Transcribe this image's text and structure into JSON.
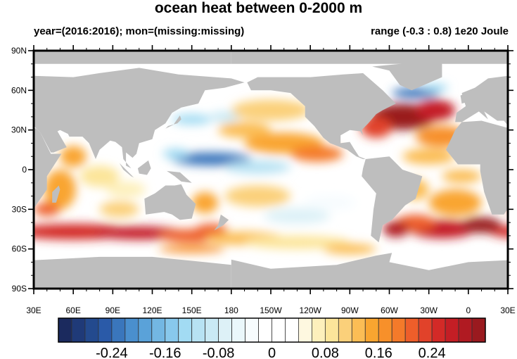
{
  "title": "ocean heat between 0-2000 m",
  "subtitle_left": "year=(2016:2016); mon=(missing:missing)",
  "subtitle_right": "range (-0.3 : 0.8) 1e20 Joule",
  "map": {
    "projection": "cylindrical equidistant",
    "lon_range": [
      "30E",
      "30E"
    ],
    "lat_range": [
      "90S",
      "90N"
    ],
    "land_color": "#bebebe",
    "lat_labels": [
      "90N",
      "60N",
      "30N",
      "0",
      "30S",
      "60S",
      "90S"
    ],
    "lon_labels": [
      "30E",
      "60E",
      "90E",
      "120E",
      "150E",
      "180",
      "150W",
      "120W",
      "90W",
      "60W",
      "30W",
      "0",
      "30E"
    ]
  },
  "colorbar": {
    "levels_min": -0.3,
    "levels_max": 0.3,
    "level_step": 0.02,
    "labels": [
      "-0.24",
      "-0.16",
      "-0.08",
      "0",
      "0.08",
      "0.16",
      "0.24"
    ],
    "label_values": [
      -0.24,
      -0.16,
      -0.08,
      0,
      0.08,
      0.16,
      0.24
    ],
    "colors": [
      "#1b2a5e",
      "#1f3a78",
      "#234a8e",
      "#2a5aa8",
      "#3a76bc",
      "#4a8fce",
      "#5aa2d9",
      "#73b7e3",
      "#88c8ec",
      "#a2dbf3",
      "#b7e2f3",
      "#c9e9f4",
      "#ddf1f7",
      "#eaf7fb",
      "#f7fcfe",
      "#ffffff",
      "#ffffff",
      "#ffffff",
      "#fef8e0",
      "#fdf0bc",
      "#fce59a",
      "#fbd07a",
      "#fbbd55",
      "#f9a530",
      "#f7902a",
      "#f47a2a",
      "#ee5e2a",
      "#e1422a",
      "#d32a27",
      "#c41e25",
      "#b01a22",
      "#9a1a1f"
    ]
  }
}
